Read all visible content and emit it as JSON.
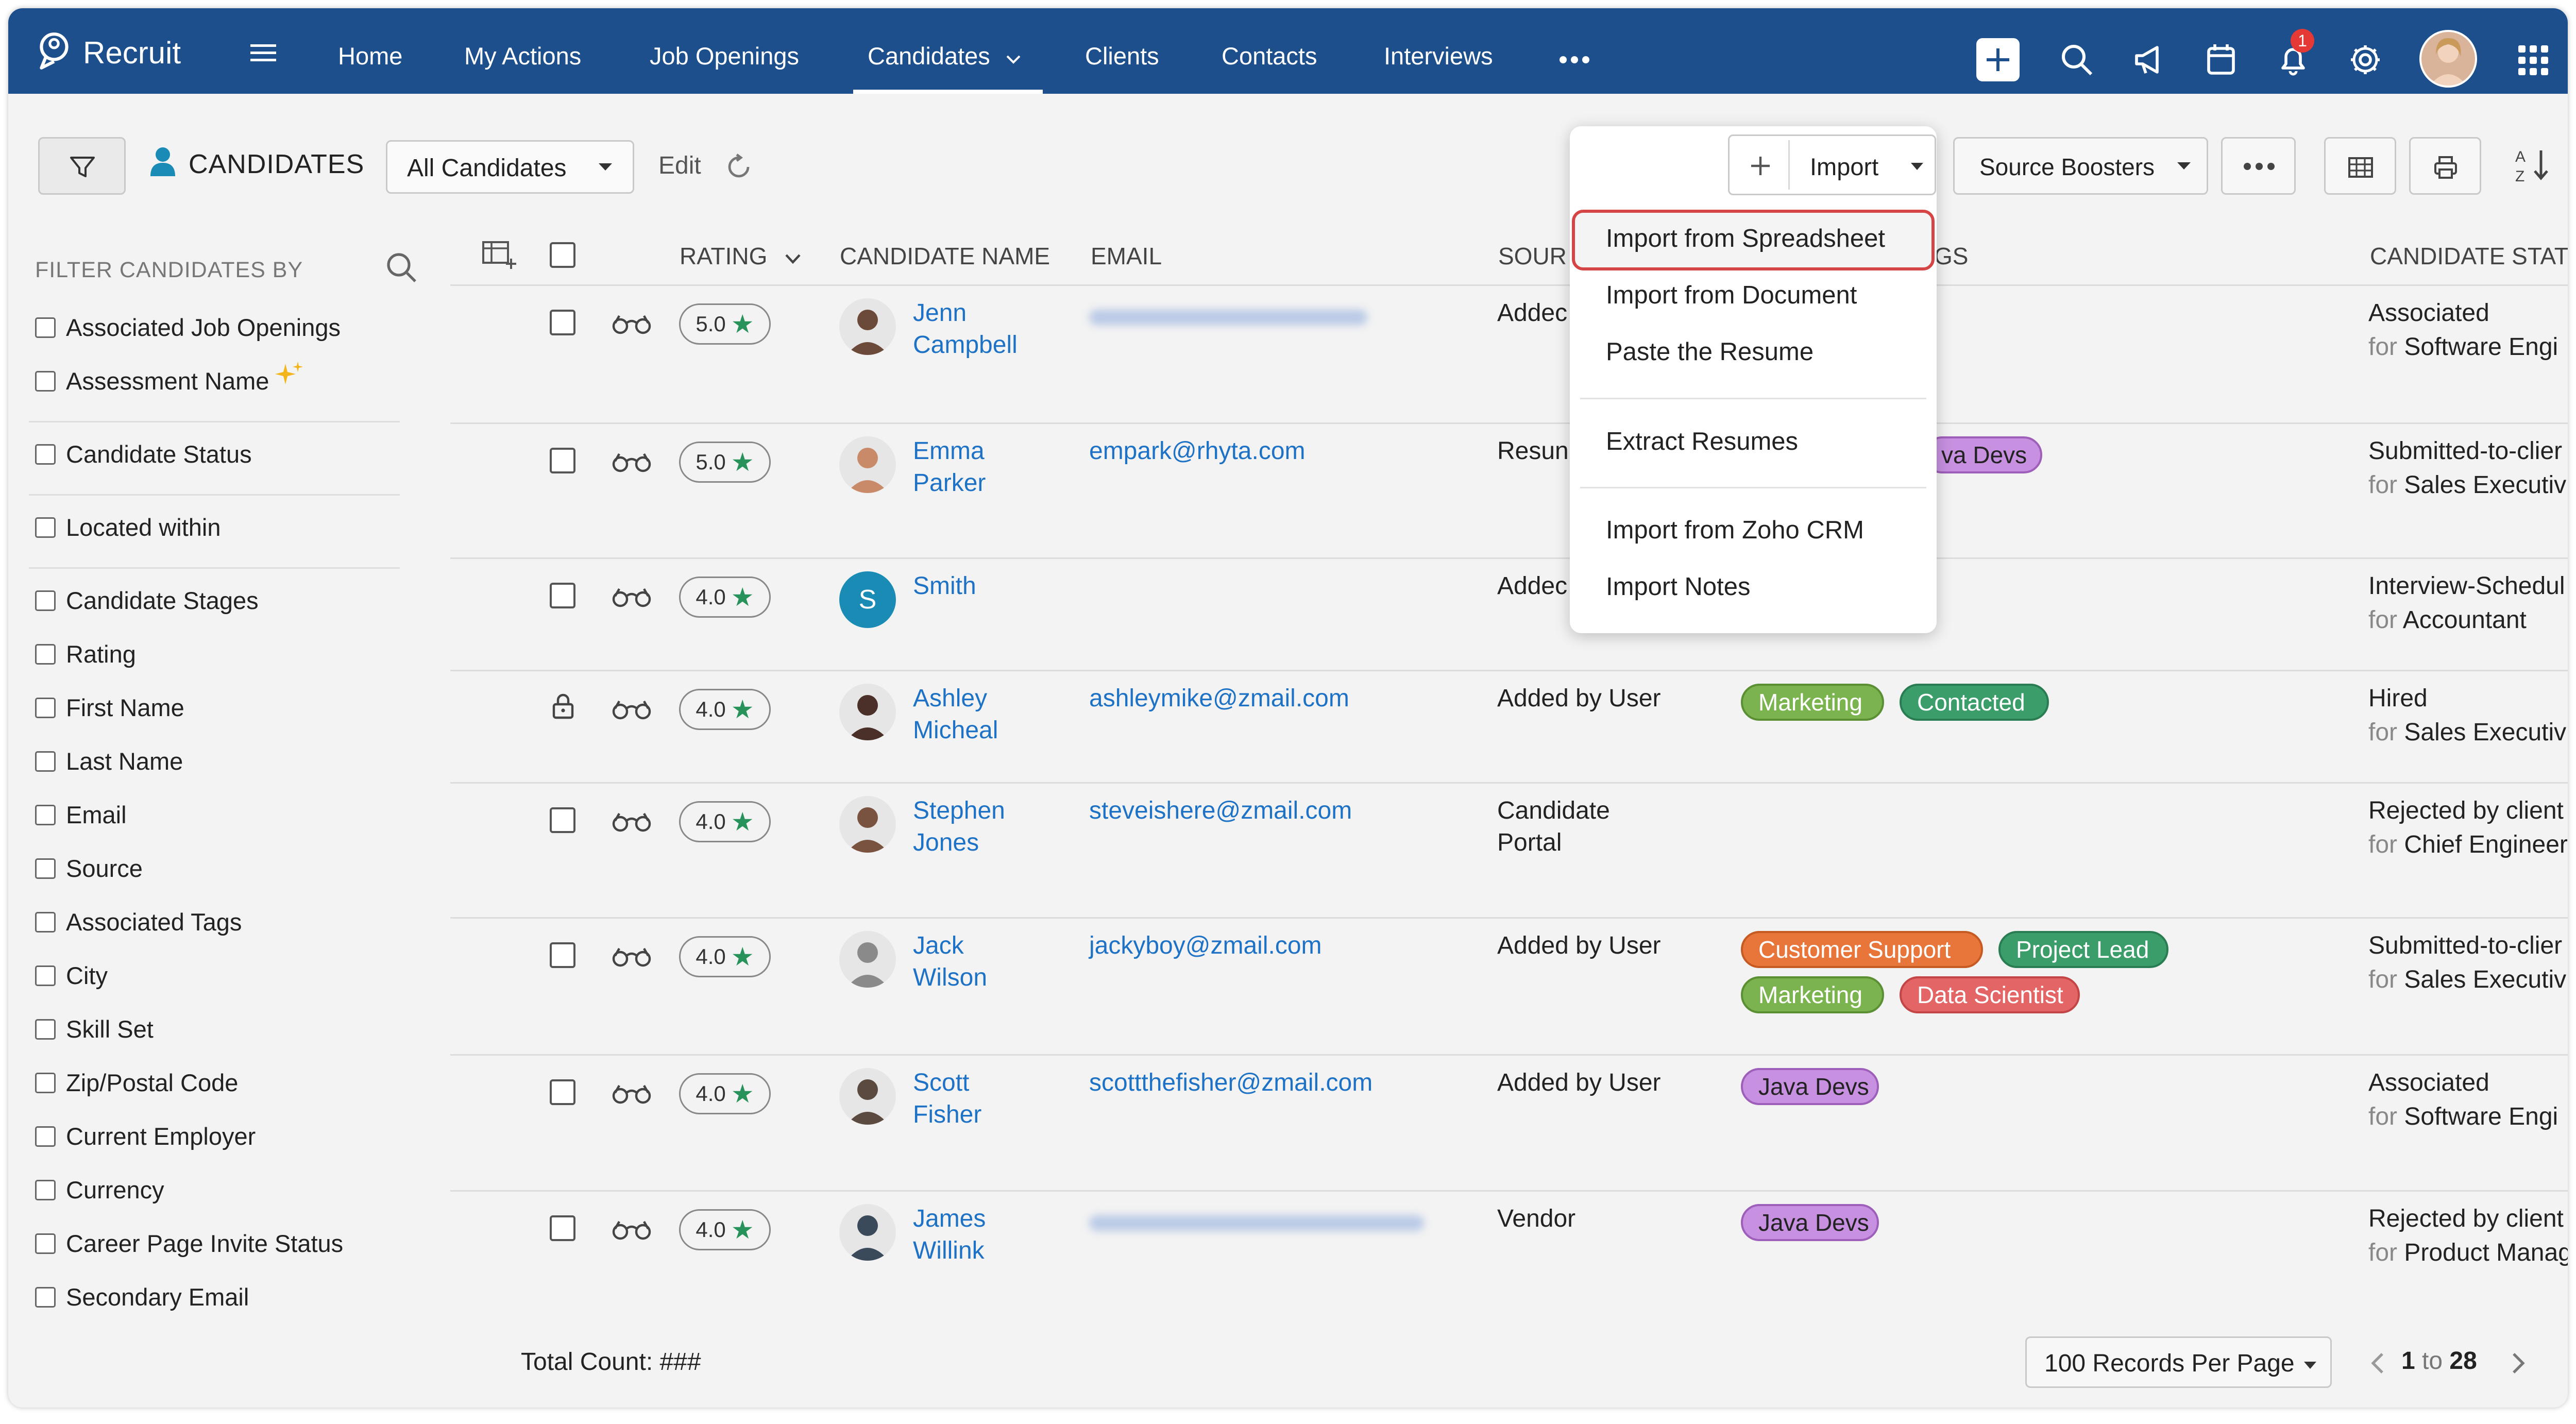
{
  "nav": {
    "brand": "Recruit",
    "items": [
      "Home",
      "My Actions",
      "Job Openings",
      "Candidates",
      "Clients",
      "Contacts",
      "Interviews"
    ],
    "active": "Candidates",
    "notification_count": "1"
  },
  "toolbar": {
    "module_title": "CANDIDATES",
    "view_select": "All Candidates",
    "edit_label": "Edit",
    "import_label": "Import",
    "source_boosters_label": "Source Boosters"
  },
  "import_menu": {
    "items": [
      "Import from Spreadsheet",
      "Import from Document",
      "Paste the Resume",
      "Extract Resumes",
      "Import from Zoho CRM",
      "Import Notes"
    ],
    "highlighted": "Import from Spreadsheet"
  },
  "sidebar": {
    "heading": "FILTER CANDIDATES BY",
    "filters": [
      "Associated Job Openings",
      "Assessment Name",
      "Candidate Status",
      "Located within",
      "Candidate Stages",
      "Rating",
      "First Name",
      "Last Name",
      "Email",
      "Source",
      "Associated Tags",
      "City",
      "Skill Set",
      "Zip/Postal Code",
      "Current Employer",
      "Currency",
      "Career Page Invite Status",
      "Secondary Email"
    ]
  },
  "table": {
    "columns": {
      "rating": "RATING",
      "name": "CANDIDATE NAME",
      "email": "EMAIL",
      "source": "SOUR",
      "tags": "GS",
      "status": "CANDIDATE STATU"
    },
    "rows": [
      {
        "rating": "5.0",
        "first": "Jenn",
        "last": "Campbell",
        "email": "",
        "source": "Addec",
        "source2": "",
        "tags": [],
        "status": "Associated",
        "status_for": "Software Engi",
        "avatar_color": "#6b4a3a",
        "initial": ""
      },
      {
        "rating": "5.0",
        "first": "Emma",
        "last": "Parker",
        "email": "empark@rhyta.com",
        "source": "Resun",
        "source2": "",
        "tags": [
          {
            "label": "va Devs",
            "color": "purple"
          }
        ],
        "status": "Submitted-to-clier",
        "status_for": "Sales Executiv",
        "avatar_color": "#c98a6a",
        "initial": ""
      },
      {
        "rating": "4.0",
        "first": "Smith",
        "last": "",
        "email": "",
        "source": "Addec",
        "source2": "",
        "tags": [],
        "status": "Interview-Schedul",
        "status_for": "Accountant",
        "avatar_color": "#1a8bb5",
        "initial": "S"
      },
      {
        "rating": "4.0",
        "first": "Ashley",
        "last": "Micheal",
        "email": "ashleymike@zmail.com",
        "source": "Added by User",
        "source2": "",
        "tags": [
          {
            "label": "Marketing",
            "color": "green"
          },
          {
            "label": "Contacted",
            "color": "teal"
          }
        ],
        "status": "Hired",
        "status_for": "Sales Executiv",
        "avatar_color": "#4a3028",
        "initial": "",
        "locked": true
      },
      {
        "rating": "4.0",
        "first": "Stephen",
        "last": "Jones",
        "email": "steveishere@zmail.com",
        "source": "Candidate",
        "source2": "Portal",
        "tags": [],
        "status": "Rejected by client",
        "status_for": "Chief Engineer",
        "avatar_color": "#7a5240",
        "initial": ""
      },
      {
        "rating": "4.0",
        "first": "Jack",
        "last": "Wilson",
        "email": "jackyboy@zmail.com",
        "source": "Added by User",
        "source2": "",
        "tags": [
          {
            "label": "Customer Support",
            "color": "orange"
          },
          {
            "label": "Project Lead",
            "color": "teal"
          },
          {
            "label": "Marketing",
            "color": "green"
          },
          {
            "label": "Data Scientist",
            "color": "red"
          }
        ],
        "status": "Submitted-to-clier",
        "status_for": "Sales Executiv",
        "avatar_color": "#8a8a8a",
        "initial": ""
      },
      {
        "rating": "4.0",
        "first": "Scott",
        "last": "Fisher",
        "email": "scottthefisher@zmail.com",
        "source": "Added by User",
        "source2": "",
        "tags": [
          {
            "label": "Java Devs",
            "color": "purple"
          }
        ],
        "status": "Associated",
        "status_for": "Software Engi",
        "avatar_color": "#5a4a40",
        "initial": ""
      },
      {
        "rating": "4.0",
        "first": "James",
        "last": "Willink",
        "email": "",
        "source": "Vendor",
        "source2": "",
        "tags": [
          {
            "label": "Java Devs",
            "color": "purple"
          }
        ],
        "status": "Rejected by client",
        "status_for": "Product Manag",
        "avatar_color": "#3a4a5a",
        "initial": ""
      }
    ],
    "for_label": "for"
  },
  "footer": {
    "total_count": "Total Count: ###",
    "per_page": "100 Records Per Page",
    "page_from": "1",
    "page_to_label": "to",
    "page_to": "28"
  }
}
